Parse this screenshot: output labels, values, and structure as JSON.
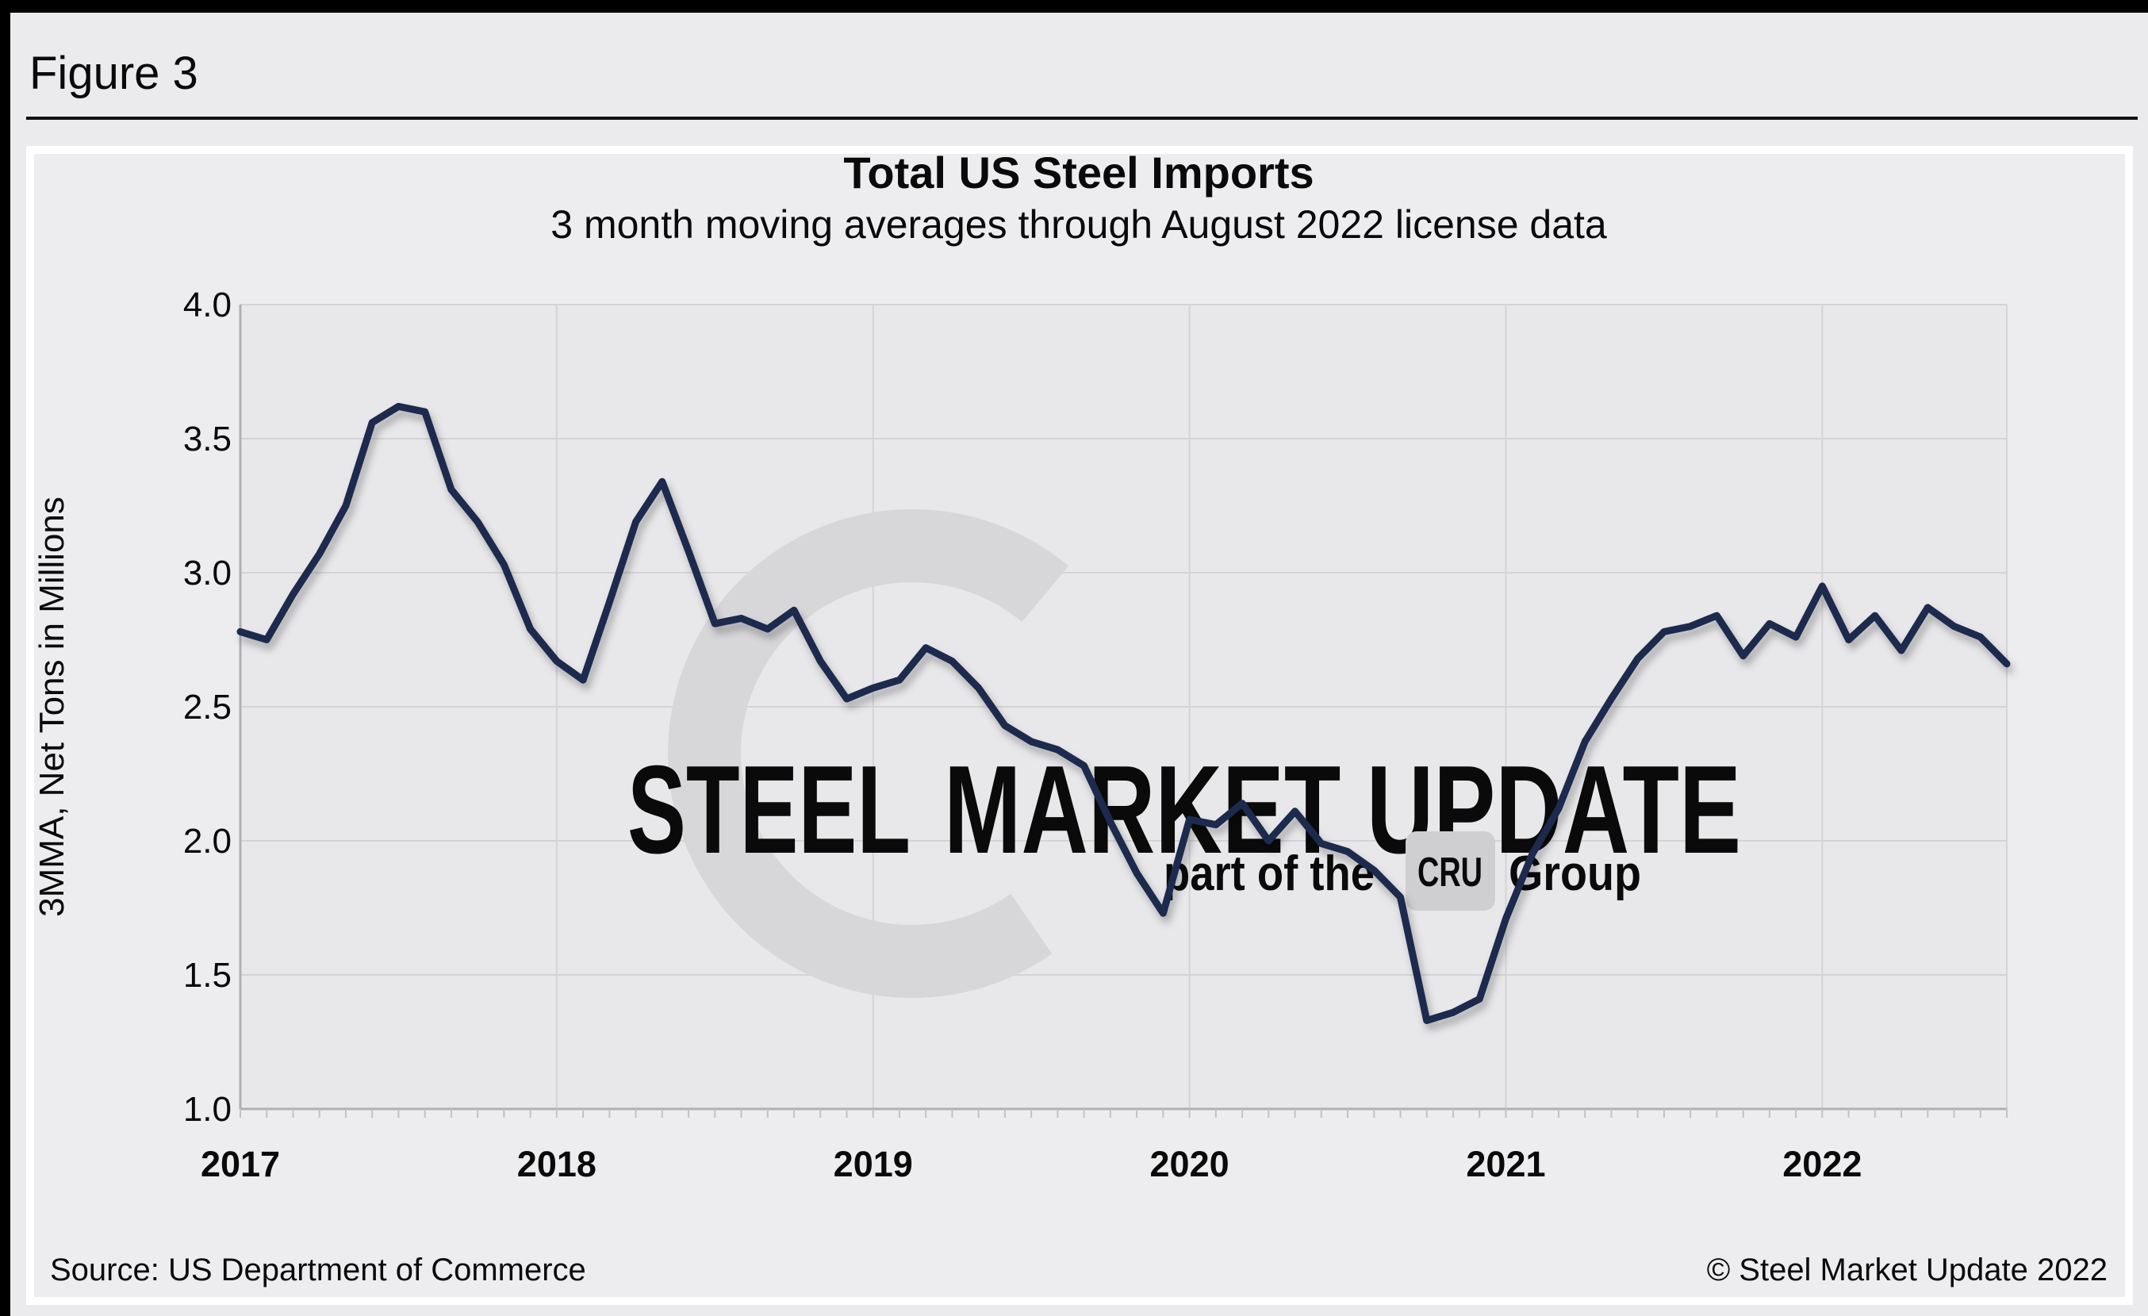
{
  "page": {
    "figure_label": "Figure 3"
  },
  "chart": {
    "footer_left": "Source: US Department of Commerce",
    "footer_right": "© Steel Market Update 2022",
    "watermark": {
      "brand_bold": "STEEL",
      "brand_light": "MARKET UPDATE",
      "tagline_prefix": "part of the",
      "tagline_box": "CRU",
      "tagline_suffix": "Group"
    },
    "colors": {
      "line": "#1f2a4e",
      "grid": "#d4d4d7",
      "axis": "#b0b0b4",
      "tick": "#c2c2c5",
      "plot_bg": "#e8e8ea",
      "watermark_dark": "#c7c7ca",
      "watermark_light": "#d8d8db",
      "watermark_badge": "#cfcfd2"
    }
  },
  "chart_data": {
    "type": "line",
    "title": "Total US Steel Imports",
    "subtitle": "3 month moving averages through August 2022 license data",
    "xlabel": "",
    "ylabel": "3MMA, Net Tons in Millions",
    "ylim": [
      1.0,
      4.0
    ],
    "ytick_labels": [
      "4.0",
      "3.5",
      "3.0",
      "2.5",
      "2.0",
      "1.5",
      "1.0"
    ],
    "xtick_labels": [
      "2017",
      "2018",
      "2019",
      "2020",
      "2021",
      "2022"
    ],
    "frequency": "monthly",
    "start": "2017-01",
    "end": "2022-08",
    "grid": "on",
    "legend": "none",
    "series": [
      {
        "name": "Total US steel imports, 3-month moving average (million net tons)",
        "values_by_year": {
          "2017": [
            2.78,
            2.75,
            2.92,
            3.07,
            3.25,
            3.56,
            3.62,
            3.6,
            3.31,
            3.19,
            3.03,
            2.79
          ],
          "2018": [
            2.67,
            2.6,
            2.89,
            3.19,
            3.34,
            3.08,
            2.81,
            2.83,
            2.79,
            2.86,
            2.67,
            2.53
          ],
          "2019": [
            2.57,
            2.6,
            2.72,
            2.67,
            2.57,
            2.43,
            2.37,
            2.34,
            2.28,
            2.07,
            1.88,
            1.73
          ],
          "2020": [
            2.08,
            2.06,
            2.14,
            2.0,
            2.11,
            1.99,
            1.96,
            1.89,
            1.79,
            1.33,
            1.36,
            1.41
          ],
          "2021": [
            1.71,
            1.95,
            2.12,
            2.37,
            2.53,
            2.68,
            2.78,
            2.8,
            2.84,
            2.69,
            2.81,
            2.76
          ],
          "2022": [
            2.95,
            2.75,
            2.84,
            2.71,
            2.87,
            2.8,
            2.76,
            2.66
          ]
        }
      }
    ]
  }
}
